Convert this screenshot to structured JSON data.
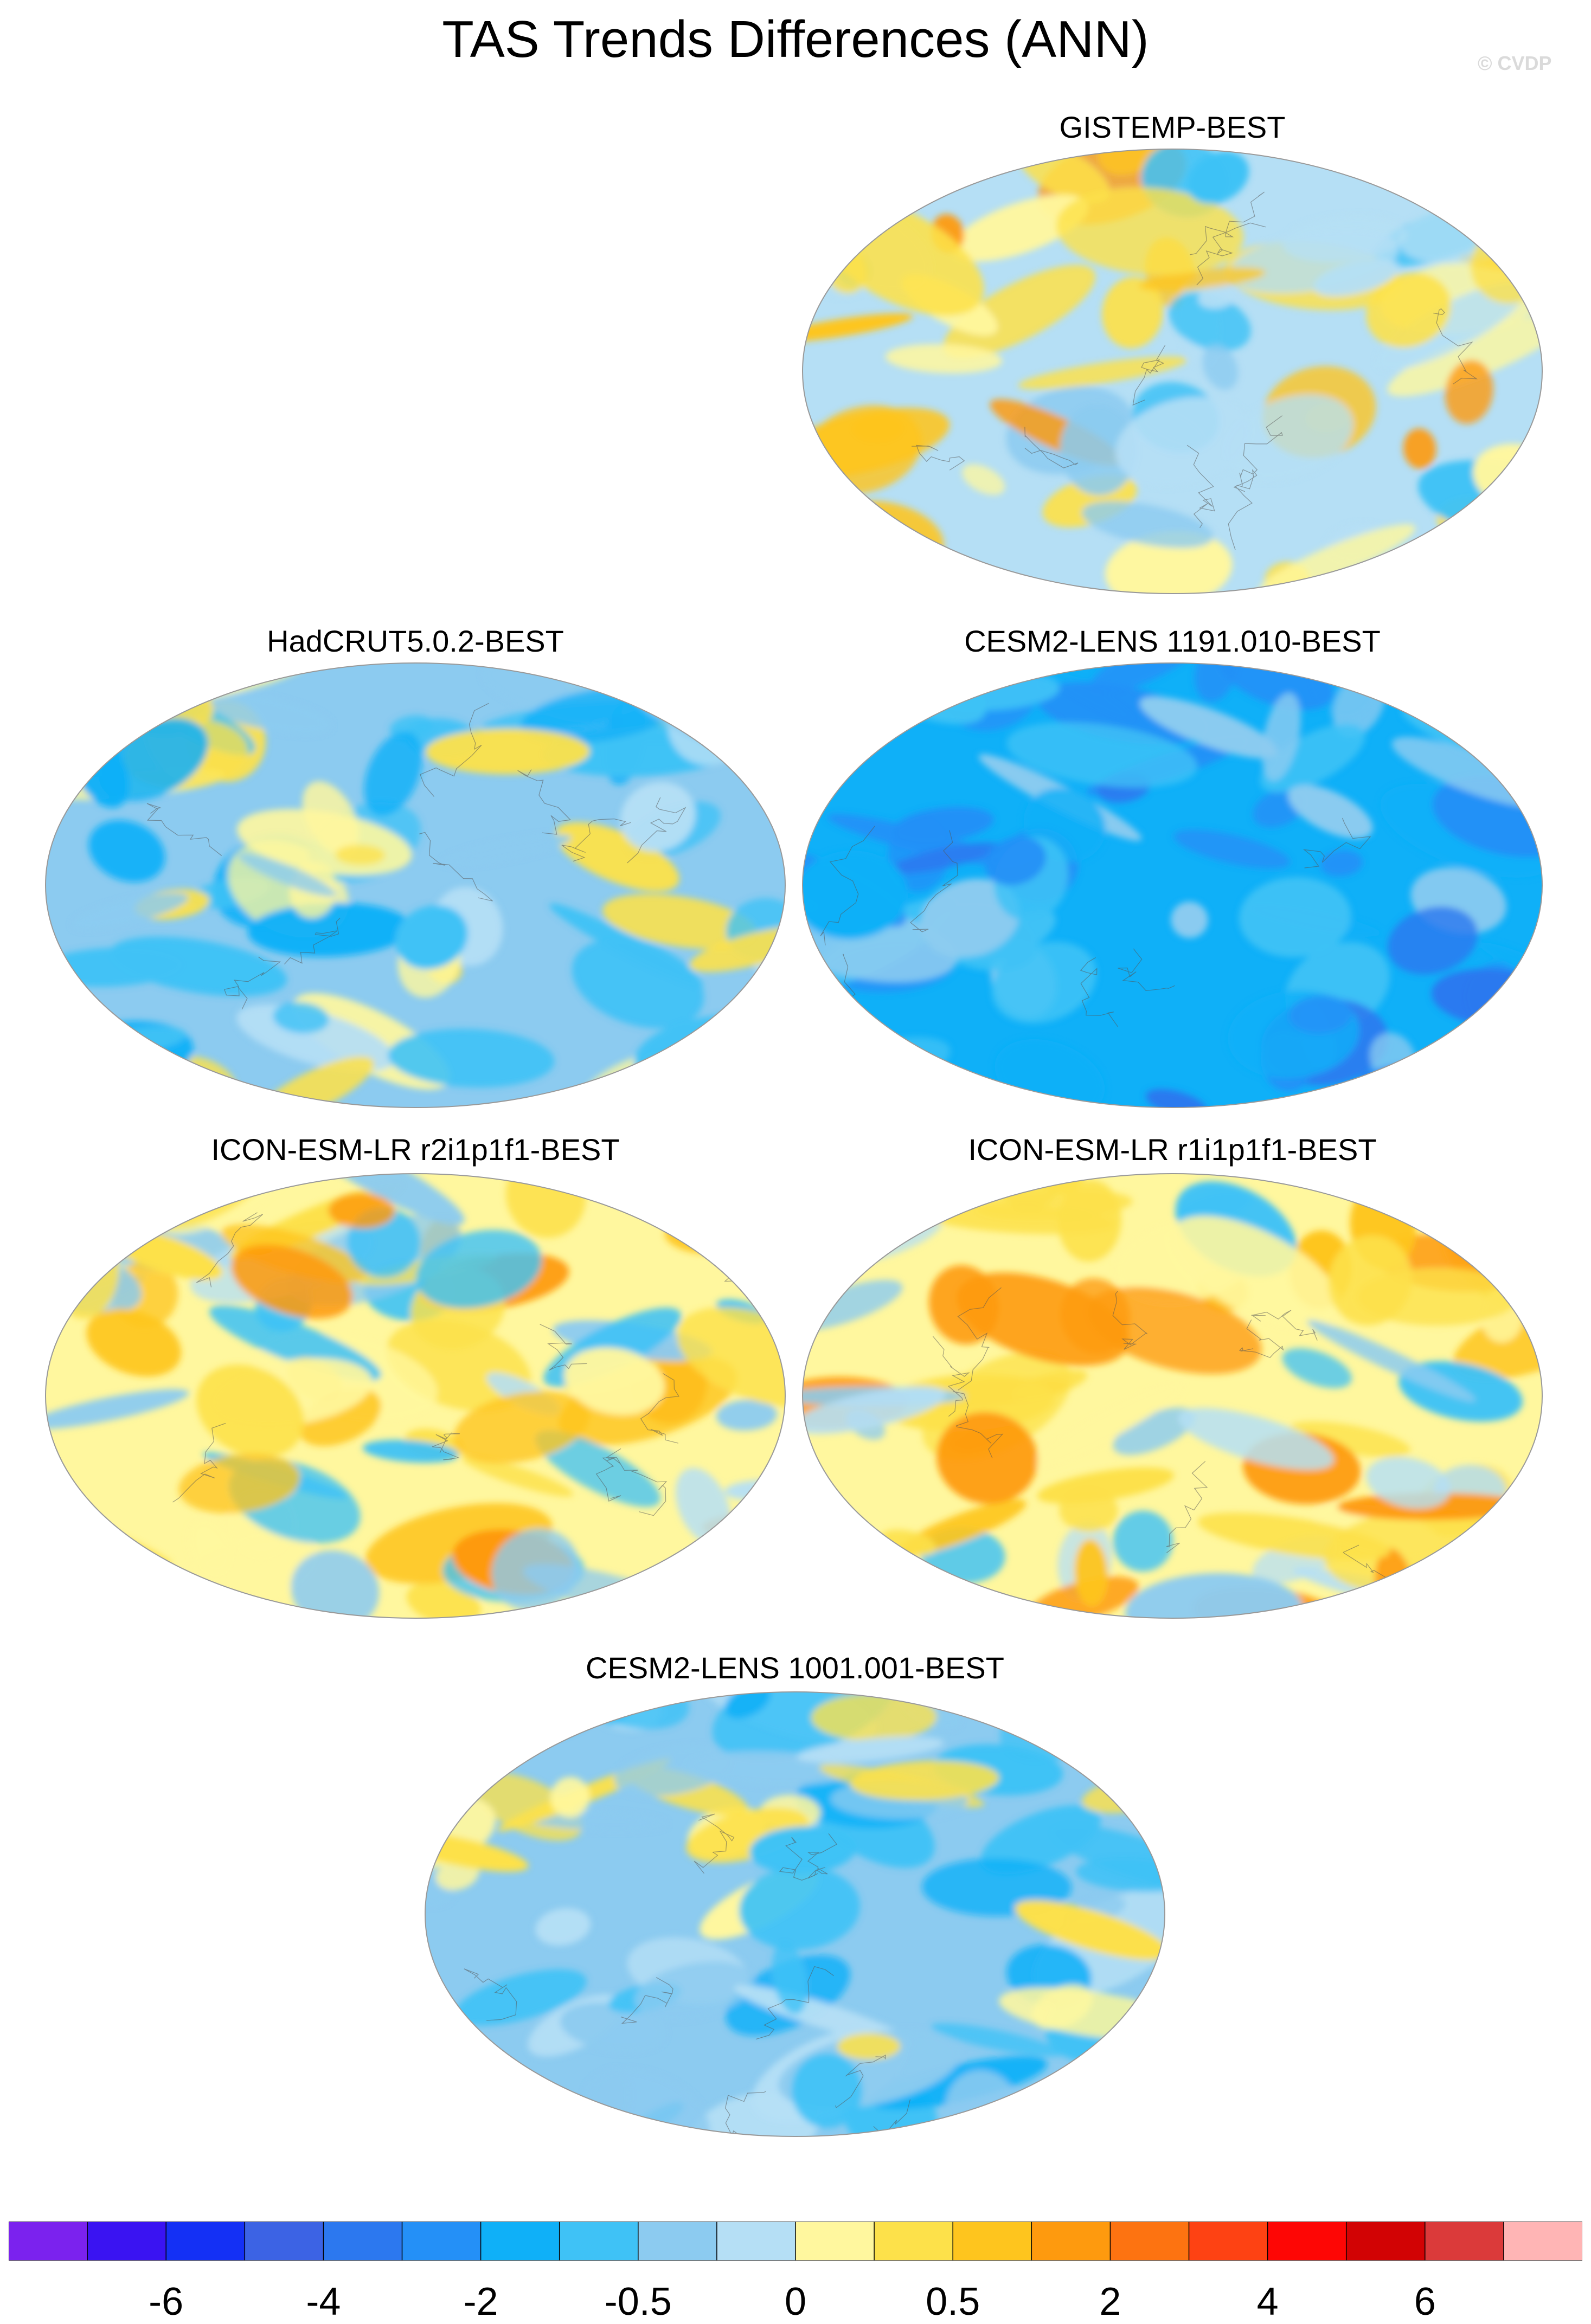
{
  "title": "TAS Trends Differences (ANN)",
  "watermark": "© CVDP",
  "panels": [
    {
      "id": "p1",
      "title": "GISTEMP-BEST",
      "scheme": "mixed"
    },
    {
      "id": "p2",
      "title": "HadCRUT5.0.2-BEST",
      "scheme": "cool"
    },
    {
      "id": "p3",
      "title": "CESM2-LENS 1191.010-BEST",
      "scheme": "cold"
    },
    {
      "id": "p4",
      "title": "ICON-ESM-LR r2i1p1f1-BEST",
      "scheme": "warm"
    },
    {
      "id": "p5",
      "title": "ICON-ESM-LR r1i1p1f1-BEST",
      "scheme": "warm"
    },
    {
      "id": "p6",
      "title": "CESM2-LENS 1001.001-BEST",
      "scheme": "cool"
    }
  ],
  "colorbar": {
    "colors": [
      "#7b22ee",
      "#3a13f2",
      "#1430f5",
      "#3c63e4",
      "#2c78ef",
      "#2490f7",
      "#0fb0f8",
      "#3fc2f6",
      "#8ccbf0",
      "#b5dff5",
      "#fff79e",
      "#fde14a",
      "#fec51e",
      "#fe9a0e",
      "#fd7311",
      "#fe4213",
      "#fe0605",
      "#d20304",
      "#db3a3a",
      "#ffb5b5"
    ],
    "labels": [
      "-6",
      "-4",
      "-2",
      "-0.5",
      "0",
      "0.5",
      "2",
      "4",
      "6"
    ],
    "label_boundaries": [
      2,
      4,
      6,
      8,
      10,
      12,
      14,
      16,
      18
    ]
  }
}
